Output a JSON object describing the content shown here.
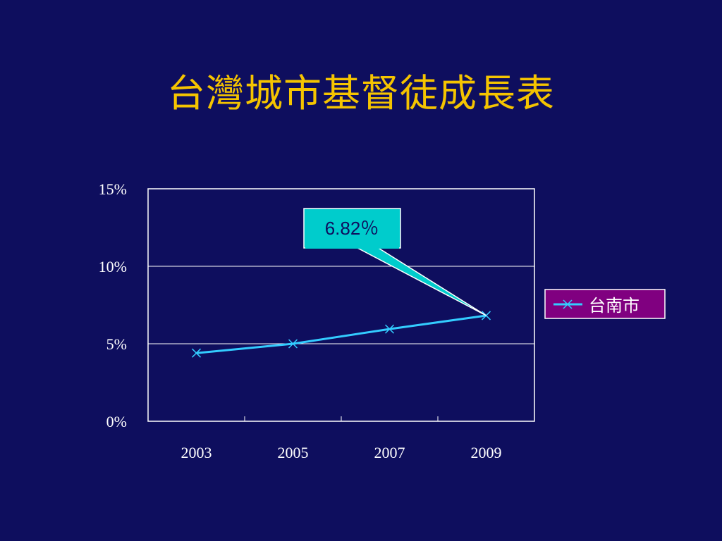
{
  "slide": {
    "title": "台灣城市基督徒成長表"
  },
  "colors": {
    "background": "#0e0e5e",
    "title": "#f5c400",
    "line": "#33ccff",
    "callout_fill": "#00cccc",
    "legend_fill": "#800080",
    "axis": "#ffffff"
  },
  "chart_data": {
    "type": "line",
    "title": "",
    "xlabel": "",
    "ylabel": "",
    "x": [
      2003,
      2005,
      2007,
      2009
    ],
    "x_tick_labels": [
      "2003",
      "2005",
      "2007",
      "2009"
    ],
    "y_tick_labels": [
      "0%",
      "5%",
      "10%",
      "15%"
    ],
    "y_ticks": [
      0,
      5,
      10,
      15
    ],
    "ylim": [
      0,
      15
    ],
    "grid": "horizontal",
    "legend_position": "right",
    "series": [
      {
        "name": "台南市",
        "values": [
          4.4,
          5.0,
          5.95,
          6.82
        ],
        "color": "#33ccff",
        "marker": "x"
      }
    ],
    "annotation": {
      "text": "6.82％",
      "target_index": 3
    }
  }
}
